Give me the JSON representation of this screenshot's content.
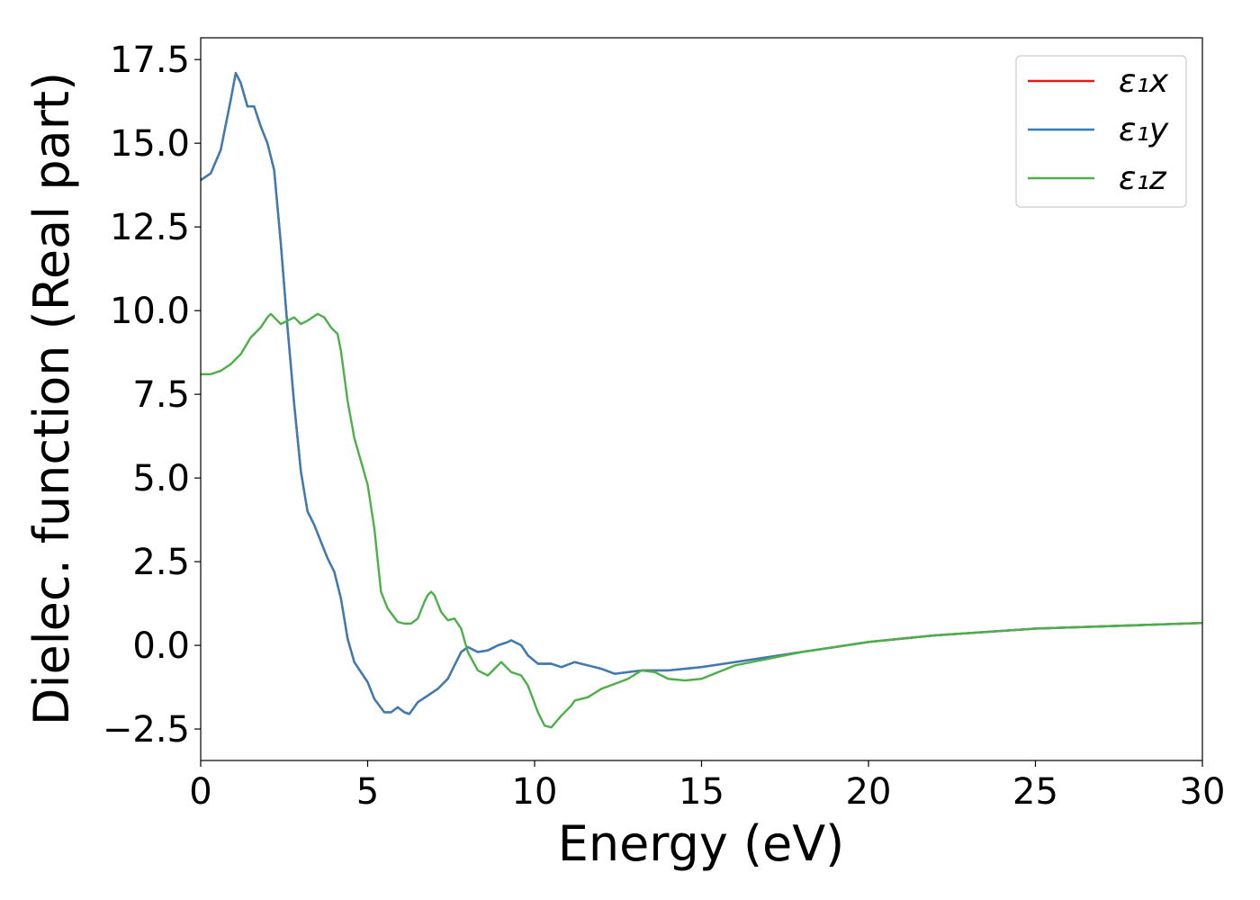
{
  "chart_data": {
    "type": "line",
    "xlabel": "Energy (eV)",
    "ylabel": "Dielec. function (Real part)",
    "xlim": [
      0,
      30
    ],
    "ylim": [
      -3.44,
      18.15
    ],
    "xticks": [
      0,
      5,
      10,
      15,
      20,
      25,
      30
    ],
    "yticks": [
      {
        "value": -2.5,
        "label": "−2.5"
      },
      {
        "value": 0,
        "label": "0.0"
      },
      2.5,
      {
        "value": 5,
        "label": "5.0"
      },
      7.5,
      {
        "value": 10,
        "label": "10.0"
      },
      12.5,
      {
        "value": 15,
        "label": "15.0"
      },
      17.5
    ],
    "legend": "upper right",
    "series": [
      {
        "name": "ε₁x",
        "color": "#e41a1c",
        "x": [
          0,
          0.3,
          0.6,
          0.9,
          1.05,
          1.2,
          1.4,
          1.6,
          1.8,
          2.0,
          2.2,
          2.4,
          2.6,
          2.8,
          3.0,
          3.2,
          3.4,
          3.6,
          3.8,
          4.0,
          4.2,
          4.4,
          4.6,
          4.8,
          5.0,
          5.2,
          5.5,
          5.7,
          5.9,
          6.1,
          6.25,
          6.5,
          6.8,
          7.1,
          7.4,
          7.6,
          7.8,
          8.0,
          8.3,
          8.6,
          8.9,
          9.2,
          9.3,
          9.6,
          9.8,
          10.1,
          10.5,
          10.8,
          11.2,
          11.6,
          12.0,
          12.4,
          12.8,
          13.2,
          13.6,
          14.0,
          14.5,
          15,
          16,
          17,
          18,
          19,
          20,
          22,
          25,
          28,
          30
        ],
        "values": [
          13.9,
          14.1,
          14.8,
          16.3,
          17.1,
          16.8,
          16.1,
          16.1,
          15.5,
          15.0,
          14.2,
          12.0,
          9.5,
          7.2,
          5.2,
          4.0,
          3.6,
          3.1,
          2.6,
          2.2,
          1.4,
          0.2,
          -0.5,
          -0.8,
          -1.1,
          -1.6,
          -2.0,
          -2.0,
          -1.85,
          -2.0,
          -2.05,
          -1.7,
          -1.5,
          -1.3,
          -1.0,
          -0.6,
          -0.2,
          -0.05,
          -0.2,
          -0.15,
          0.0,
          0.1,
          0.15,
          0.0,
          -0.3,
          -0.55,
          -0.55,
          -0.65,
          -0.5,
          -0.6,
          -0.7,
          -0.85,
          -0.8,
          -0.75,
          -0.75,
          -0.75,
          -0.7,
          -0.65,
          -0.5,
          -0.35,
          -0.2,
          -0.05,
          0.1,
          0.3,
          0.5,
          0.6,
          0.67
        ]
      },
      {
        "name": "ε₁y",
        "color": "#377eb8",
        "x": [
          0,
          0.3,
          0.6,
          0.9,
          1.05,
          1.2,
          1.4,
          1.6,
          1.8,
          2.0,
          2.2,
          2.4,
          2.6,
          2.8,
          3.0,
          3.2,
          3.4,
          3.6,
          3.8,
          4.0,
          4.2,
          4.4,
          4.6,
          4.8,
          5.0,
          5.2,
          5.5,
          5.7,
          5.9,
          6.1,
          6.25,
          6.5,
          6.8,
          7.1,
          7.4,
          7.6,
          7.8,
          8.0,
          8.3,
          8.6,
          8.9,
          9.2,
          9.3,
          9.6,
          9.8,
          10.1,
          10.5,
          10.8,
          11.2,
          11.6,
          12.0,
          12.4,
          12.8,
          13.2,
          13.6,
          14.0,
          14.5,
          15,
          16,
          17,
          18,
          19,
          20,
          22,
          25,
          28,
          30
        ],
        "values": [
          13.9,
          14.1,
          14.8,
          16.3,
          17.1,
          16.8,
          16.1,
          16.1,
          15.5,
          15.0,
          14.2,
          12.0,
          9.5,
          7.2,
          5.2,
          4.0,
          3.6,
          3.1,
          2.6,
          2.2,
          1.4,
          0.2,
          -0.5,
          -0.8,
          -1.1,
          -1.6,
          -2.0,
          -2.0,
          -1.85,
          -2.0,
          -2.05,
          -1.7,
          -1.5,
          -1.3,
          -1.0,
          -0.6,
          -0.2,
          -0.05,
          -0.2,
          -0.15,
          0.0,
          0.1,
          0.15,
          0.0,
          -0.3,
          -0.55,
          -0.55,
          -0.65,
          -0.5,
          -0.6,
          -0.7,
          -0.85,
          -0.8,
          -0.75,
          -0.75,
          -0.75,
          -0.7,
          -0.65,
          -0.5,
          -0.35,
          -0.2,
          -0.05,
          0.1,
          0.3,
          0.5,
          0.6,
          0.67
        ]
      },
      {
        "name": "ε₁z",
        "color": "#4daf4a",
        "x": [
          0,
          0.3,
          0.6,
          0.9,
          1.2,
          1.5,
          1.8,
          2.0,
          2.1,
          2.4,
          2.6,
          2.8,
          3.0,
          3.2,
          3.5,
          3.7,
          3.9,
          4.1,
          4.2,
          4.4,
          4.6,
          4.8,
          5.0,
          5.2,
          5.4,
          5.6,
          5.9,
          6.1,
          6.3,
          6.5,
          6.7,
          6.8,
          6.9,
          7.0,
          7.2,
          7.4,
          7.6,
          7.8,
          8.0,
          8.3,
          8.6,
          8.9,
          9.0,
          9.3,
          9.6,
          9.8,
          10.1,
          10.3,
          10.5,
          10.8,
          11.1,
          11.2,
          11.6,
          12.0,
          12.4,
          12.8,
          13.2,
          13.6,
          14.0,
          14.5,
          15,
          16,
          17,
          18,
          19,
          20,
          22,
          25,
          28,
          30
        ],
        "values": [
          8.1,
          8.1,
          8.2,
          8.4,
          8.7,
          9.2,
          9.5,
          9.8,
          9.9,
          9.6,
          9.7,
          9.8,
          9.6,
          9.7,
          9.9,
          9.8,
          9.5,
          9.3,
          8.8,
          7.3,
          6.2,
          5.5,
          4.8,
          3.5,
          1.6,
          1.1,
          0.7,
          0.65,
          0.65,
          0.8,
          1.3,
          1.5,
          1.6,
          1.5,
          1.0,
          0.75,
          0.8,
          0.5,
          -0.2,
          -0.75,
          -0.9,
          -0.6,
          -0.5,
          -0.8,
          -0.9,
          -1.2,
          -2.0,
          -2.4,
          -2.45,
          -2.1,
          -1.8,
          -1.65,
          -1.55,
          -1.3,
          -1.15,
          -1.0,
          -0.75,
          -0.8,
          -1.0,
          -1.05,
          -1.0,
          -0.6,
          -0.4,
          -0.2,
          -0.05,
          0.1,
          0.3,
          0.5,
          0.6,
          0.67
        ]
      }
    ]
  }
}
